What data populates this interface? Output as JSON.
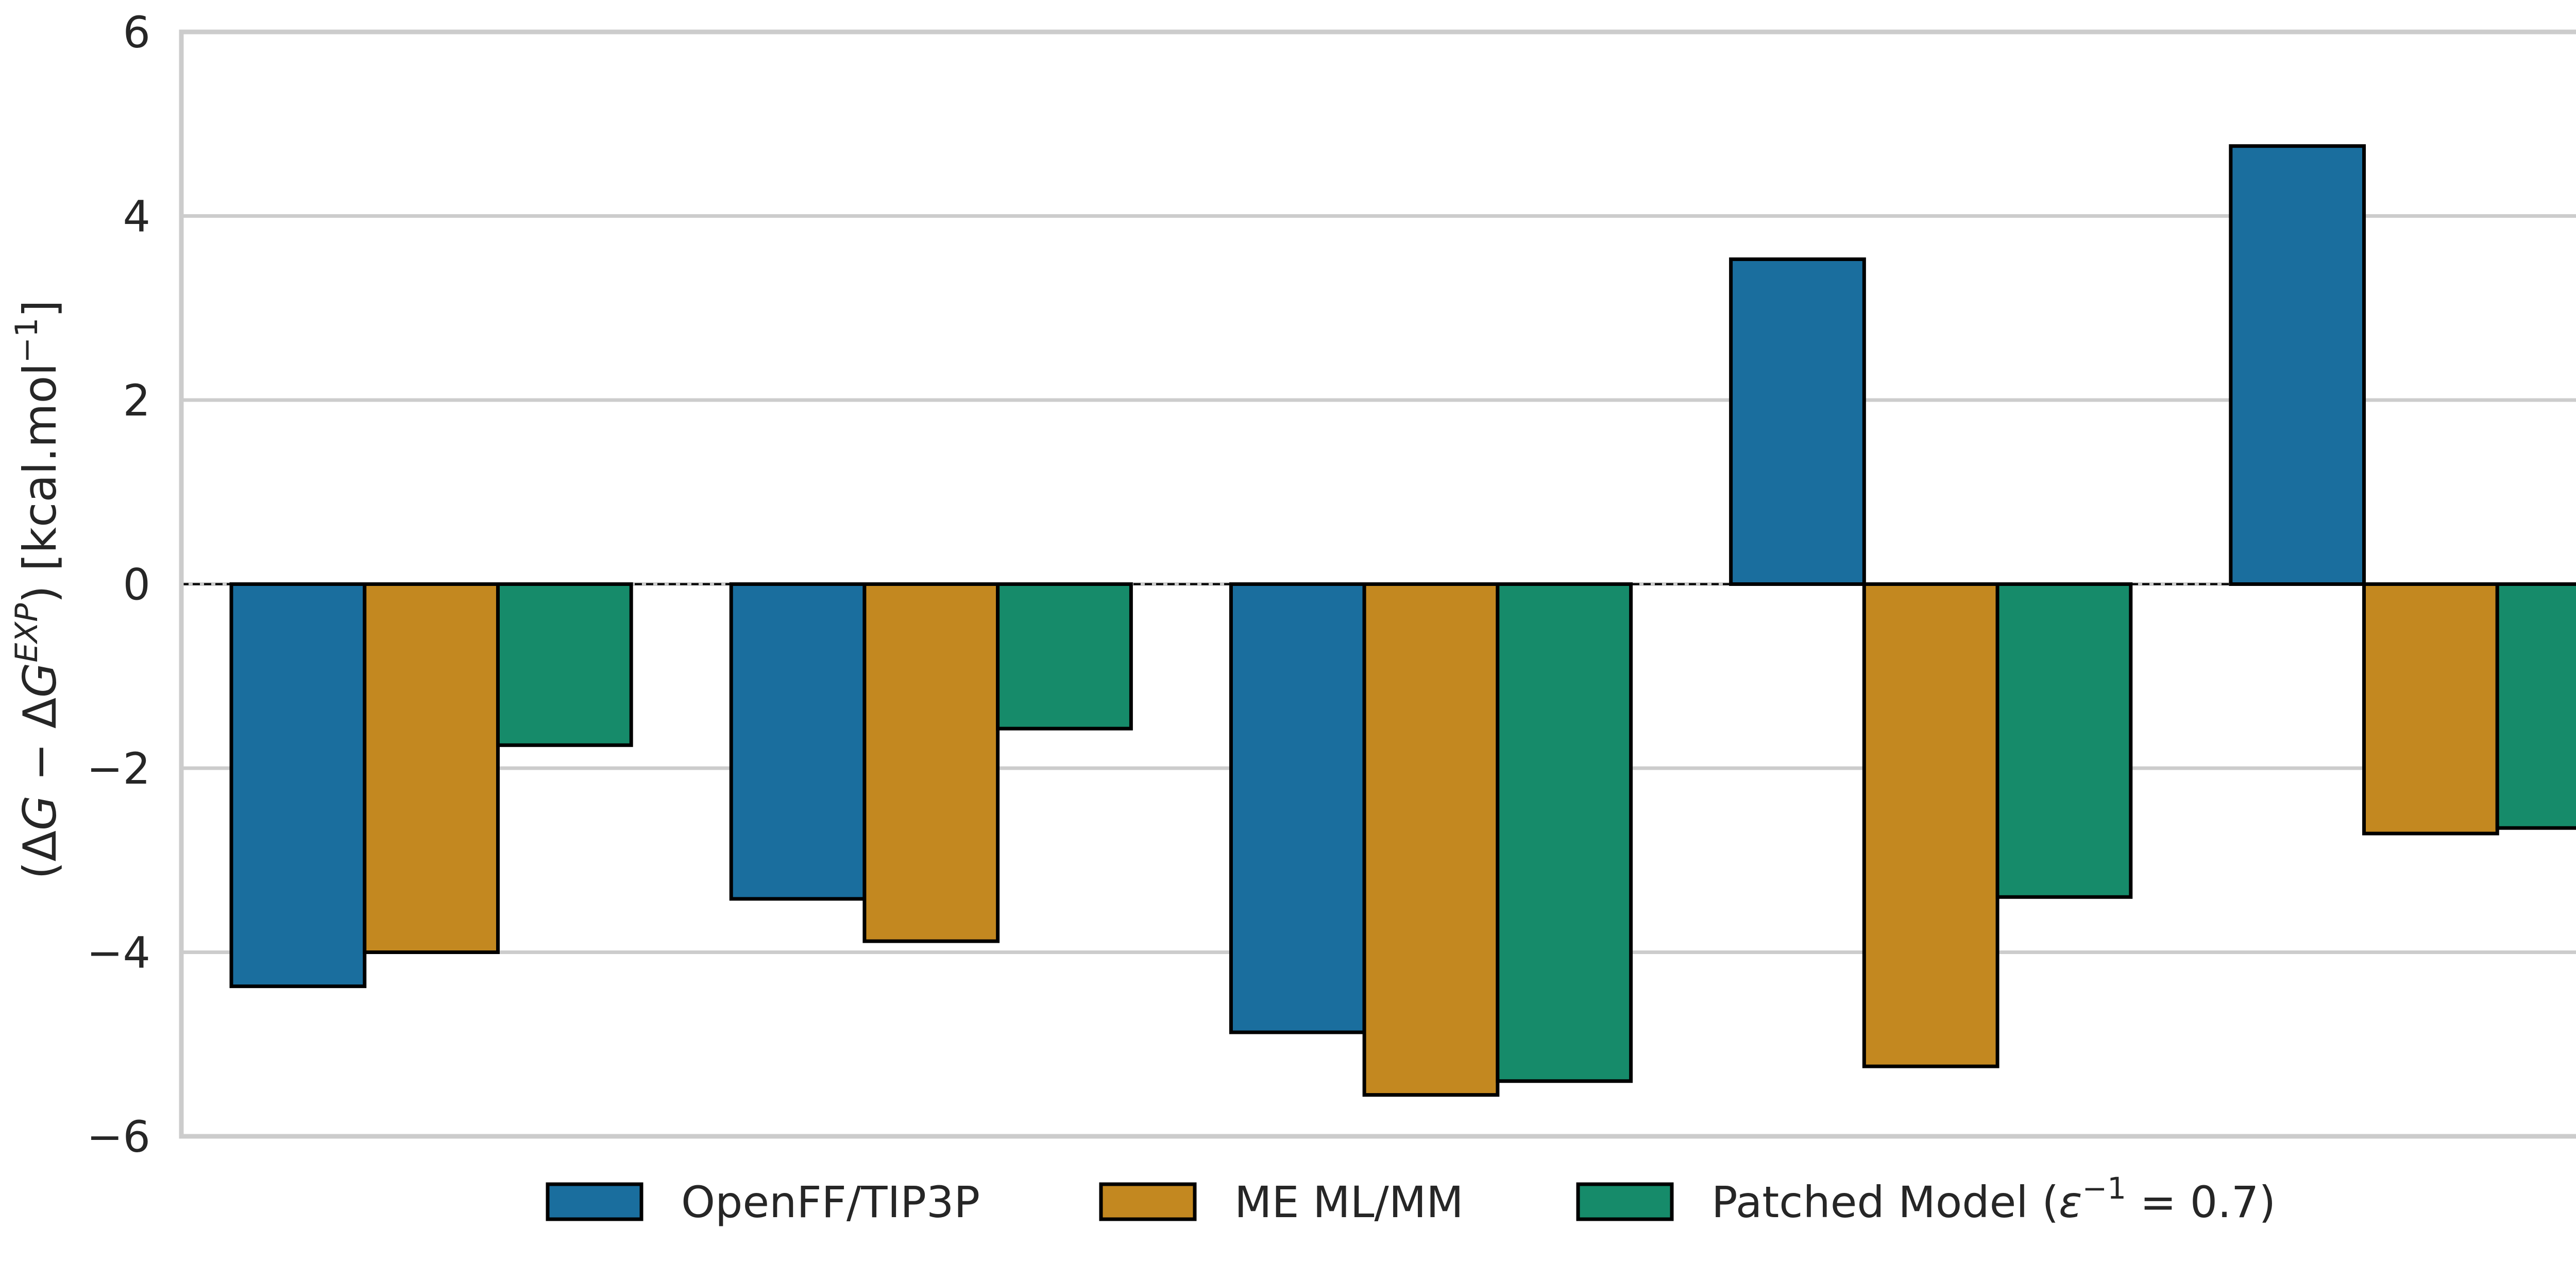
{
  "chart_data": {
    "type": "bar",
    "categories": [
      "",
      "",
      "",
      "",
      ""
    ],
    "series": [
      {
        "name": "OpenFF/TIP3P",
        "color": "#1a6e9e",
        "values": [
          -4.37,
          -3.42,
          -4.87,
          3.53,
          4.76
        ]
      },
      {
        "name": "ME ML/MM",
        "color": "#c38820",
        "values": [
          -4.0,
          -3.88,
          -5.55,
          -5.24,
          -2.71
        ]
      },
      {
        "name": "Patched Model (ε⁻¹ = 0.7)",
        "color": "#168b6a",
        "values": [
          -1.75,
          -1.57,
          -5.4,
          -3.4,
          -2.65
        ]
      }
    ],
    "ylim": [
      -6,
      6
    ],
    "yticks": [
      -6,
      -4,
      -2,
      0,
      2,
      4,
      6
    ],
    "ytick_labels": [
      "−6",
      "−4",
      "−2",
      "0",
      "2",
      "4",
      "6"
    ],
    "ylabel": "(ΔG − ΔG^EXP) [kcal.mol⁻¹]",
    "ylabel_parts": {
      "open": "(Δ",
      "g1": "G",
      "minus": " − Δ",
      "g2": "G",
      "exp": "EXP",
      "close": ") [kcal.mol",
      "neg": "−1",
      "end": "]"
    },
    "xlabel": "",
    "grid": "horizontal",
    "zero_line": "dashed",
    "legend_position": "bottom-center",
    "legend_parts": {
      "s1": "OpenFF/TIP3P",
      "s2": "ME ML/MM",
      "s3_prefix": "Patched Model (",
      "s3_eps": "ε",
      "s3_sup": "−1",
      "s3_suffix": " = 0.7)"
    },
    "colors": {
      "grid": "#cccccc",
      "frame": "#cccccc",
      "bar_edge": "#000000",
      "zero_line": "#000000",
      "text": "#262626"
    }
  }
}
